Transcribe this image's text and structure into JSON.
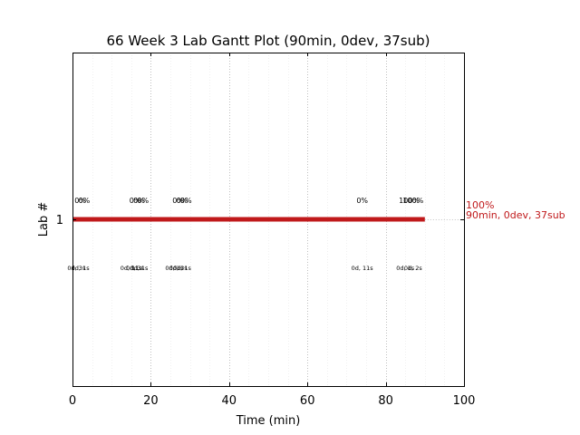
{
  "chart_data": {
    "type": "gantt",
    "title": "66 Week 3 Lab Gantt Plot (90min, 0dev, 37sub)",
    "xlabel": "Time (min)",
    "ylabel": "Lab #",
    "xlim": [
      0,
      100
    ],
    "x_ticks": [
      "0",
      "20",
      "40",
      "60",
      "80",
      "100"
    ],
    "y_ticks": [
      "1"
    ],
    "grid": true,
    "bar": {
      "lab": "1",
      "start": 0,
      "end": 90,
      "color": "#c0191b"
    },
    "end_label_lines": [
      "100%",
      "90min, 0dev, 37sub"
    ],
    "end_label_color": "#c0191b",
    "progress_labels": [
      {
        "x": 2,
        "text": "0%"
      },
      {
        "x": 3,
        "text": "0%"
      },
      {
        "x": 16,
        "text": "0%"
      },
      {
        "x": 17,
        "text": "0%"
      },
      {
        "x": 18,
        "text": "0%"
      },
      {
        "x": 27,
        "text": "0%"
      },
      {
        "x": 28,
        "text": "0%"
      },
      {
        "x": 29,
        "text": "0%"
      },
      {
        "x": 74,
        "text": "0%"
      },
      {
        "x": 86,
        "text": "100%"
      },
      {
        "x": 87,
        "text": "100%"
      }
    ],
    "time_labels": [
      {
        "x": 1,
        "text": "0d, 3s"
      },
      {
        "x": 2,
        "text": "0d, 1s"
      },
      {
        "x": 15,
        "text": "0d, 11s"
      },
      {
        "x": 16,
        "text": "0d, 3s"
      },
      {
        "x": 17,
        "text": "0d, 1s"
      },
      {
        "x": 26,
        "text": "0d, 1s"
      },
      {
        "x": 27,
        "text": "0d, 3s"
      },
      {
        "x": 28,
        "text": "0d, 1s"
      },
      {
        "x": 74,
        "text": "0d, 11s"
      },
      {
        "x": 85,
        "text": "0d, 1s"
      },
      {
        "x": 87,
        "text": "0d, 2s"
      }
    ]
  }
}
